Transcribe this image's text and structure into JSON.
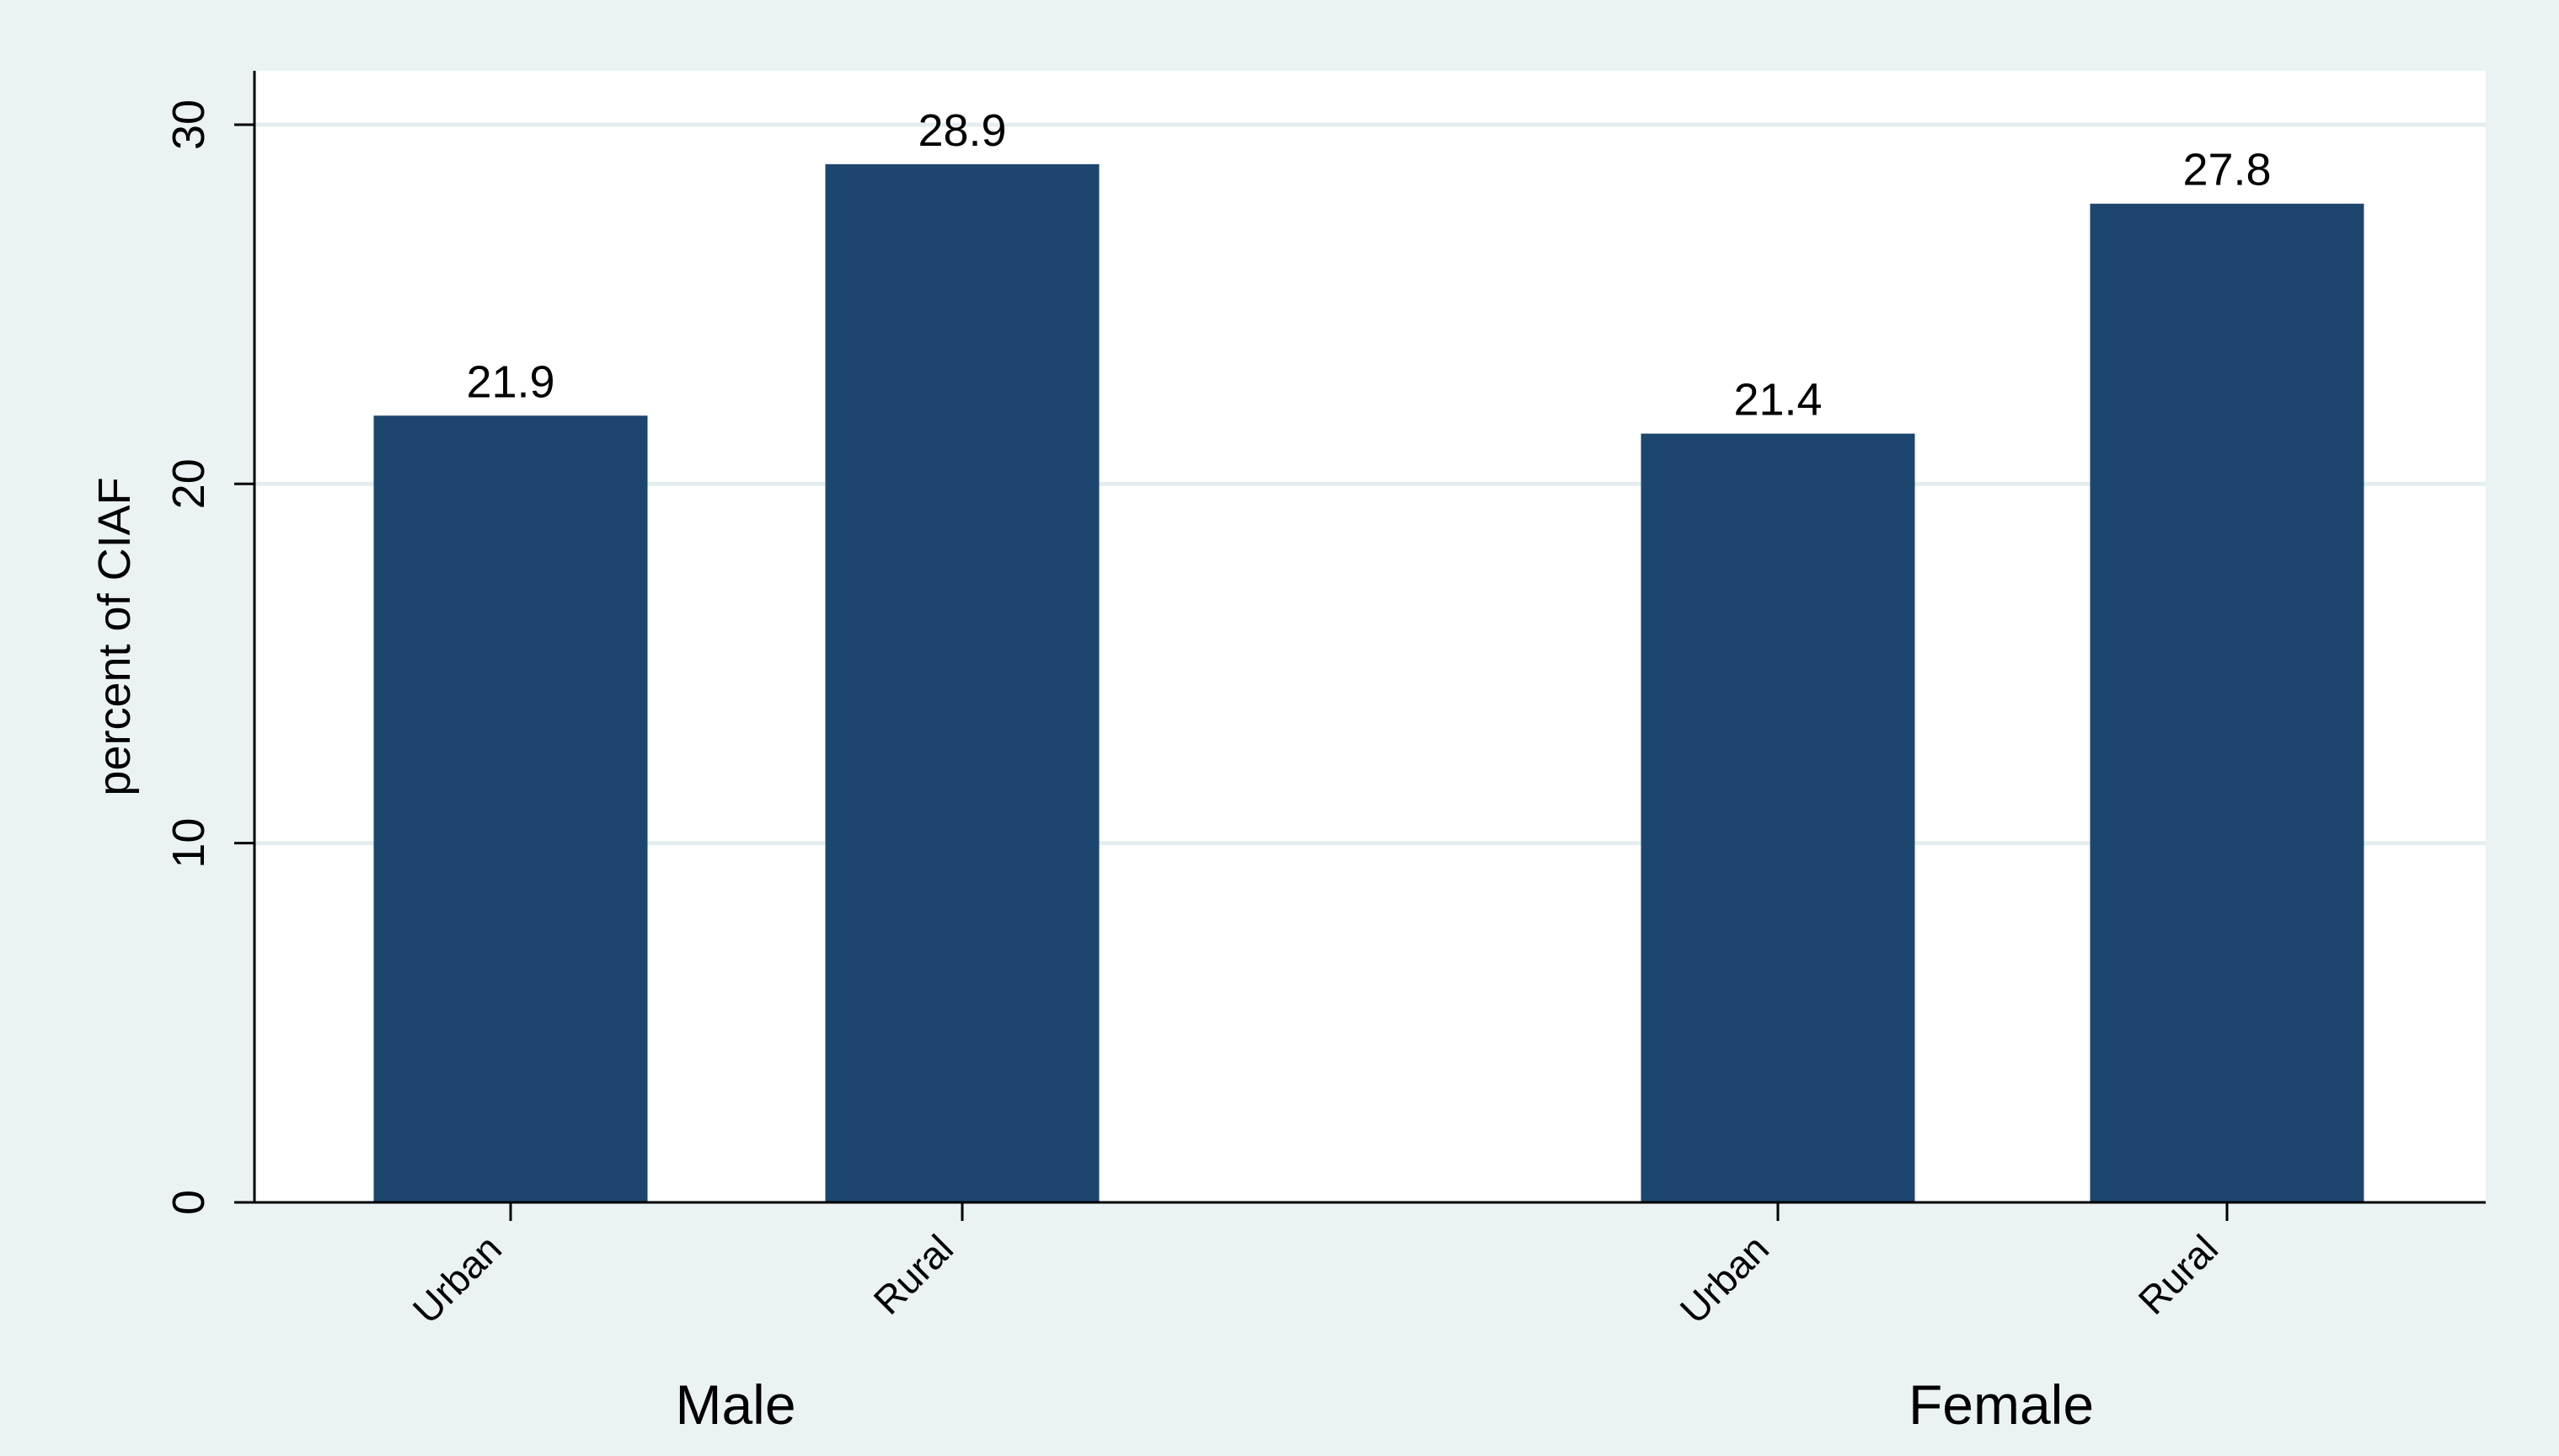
{
  "chart_data": {
    "type": "bar",
    "ylabel": "percent of CIAF",
    "xlabel": "",
    "ylim": [
      0,
      31.5
    ],
    "yticks": [
      0,
      10,
      20,
      30
    ],
    "grid": true,
    "colors": {
      "bar": "#1c466e",
      "outer_background": "#eaf2f3",
      "plot_background": "#ffffff",
      "gridline": "#e4eef0"
    },
    "groups": [
      {
        "name": "Male",
        "categories": [
          "Urban",
          "Rural"
        ],
        "values": [
          21.9,
          28.9
        ],
        "labels": [
          "21.9",
          "28.9"
        ]
      },
      {
        "name": "Female",
        "categories": [
          "Urban",
          "Rural"
        ],
        "values": [
          21.4,
          27.8
        ],
        "labels": [
          "21.4",
          "27.8"
        ]
      }
    ]
  }
}
